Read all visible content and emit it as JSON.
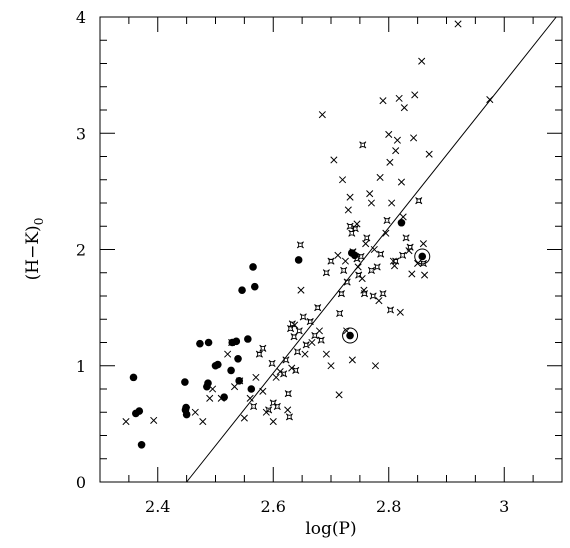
{
  "chart_data": {
    "type": "scatter",
    "title": "",
    "xlabel": "log(P)",
    "ylabel": "(H−K)",
    "ylabel_subscript": "0",
    "xlim": [
      2.3,
      3.1
    ],
    "ylim": [
      0,
      4
    ],
    "xticks": [
      2.4,
      2.6,
      2.8,
      3.0
    ],
    "xtick_labels": [
      "2.4",
      "2.6",
      "2.8",
      "3"
    ],
    "yticks": [
      0,
      1,
      2,
      3,
      4
    ],
    "ytick_labels": [
      "0",
      "1",
      "2",
      "3",
      "4"
    ],
    "grid": false,
    "fit_line": {
      "x": [
        2.45,
        3.09
      ],
      "y": [
        0.0,
        4.0
      ]
    },
    "series": [
      {
        "marker": "filled-circle",
        "points": [
          [
            2.358,
            0.9
          ],
          [
            2.362,
            0.59
          ],
          [
            2.368,
            0.61
          ],
          [
            2.372,
            0.32
          ],
          [
            2.447,
            0.86
          ],
          [
            2.448,
            0.62
          ],
          [
            2.449,
            0.64
          ],
          [
            2.45,
            0.58
          ],
          [
            2.473,
            1.19
          ],
          [
            2.485,
            0.82
          ],
          [
            2.487,
            0.85
          ],
          [
            2.488,
            1.2
          ],
          [
            2.5,
            1.0
          ],
          [
            2.504,
            1.01
          ],
          [
            2.515,
            0.73
          ],
          [
            2.527,
            0.96
          ],
          [
            2.529,
            1.2
          ],
          [
            2.536,
            1.21
          ],
          [
            2.539,
            1.06
          ],
          [
            2.541,
            0.87
          ],
          [
            2.546,
            1.65
          ],
          [
            2.556,
            1.23
          ],
          [
            2.562,
            0.8
          ],
          [
            2.565,
            1.85
          ],
          [
            2.568,
            1.68
          ],
          [
            2.644,
            1.91
          ],
          [
            2.736,
            1.97
          ],
          [
            2.741,
            1.95
          ],
          [
            2.822,
            2.23
          ]
        ]
      },
      {
        "marker": "circled-dot",
        "points": [
          [
            2.733,
            1.26
          ],
          [
            2.858,
            1.94
          ]
        ]
      },
      {
        "marker": "cross",
        "points": [
          [
            2.345,
            0.52
          ],
          [
            2.393,
            0.53
          ],
          [
            2.45,
            0.62
          ],
          [
            2.465,
            0.6
          ],
          [
            2.478,
            0.52
          ],
          [
            2.49,
            0.72
          ],
          [
            2.495,
            0.8
          ],
          [
            2.51,
            0.72
          ],
          [
            2.521,
            1.1
          ],
          [
            2.533,
            0.82
          ],
          [
            2.55,
            0.55
          ],
          [
            2.56,
            0.72
          ],
          [
            2.57,
            0.9
          ],
          [
            2.582,
            0.78
          ],
          [
            2.588,
            0.6
          ],
          [
            2.6,
            0.52
          ],
          [
            2.605,
            0.9
          ],
          [
            2.612,
            0.95
          ],
          [
            2.625,
            0.62
          ],
          [
            2.632,
            0.98
          ],
          [
            2.637,
            1.35
          ],
          [
            2.648,
            1.65
          ],
          [
            2.655,
            1.1
          ],
          [
            2.667,
            1.2
          ],
          [
            2.68,
            1.3
          ],
          [
            2.685,
            3.16
          ],
          [
            2.692,
            1.1
          ],
          [
            2.7,
            1.0
          ],
          [
            2.705,
            2.77
          ],
          [
            2.712,
            1.95
          ],
          [
            2.714,
            0.75
          ],
          [
            2.72,
            2.6
          ],
          [
            2.725,
            1.9
          ],
          [
            2.727,
            1.3
          ],
          [
            2.73,
            2.34
          ],
          [
            2.733,
            2.45
          ],
          [
            2.737,
            1.05
          ],
          [
            2.745,
            2.22
          ],
          [
            2.747,
            1.85
          ],
          [
            2.754,
            1.75
          ],
          [
            2.757,
            1.65
          ],
          [
            2.76,
            2.05
          ],
          [
            2.767,
            2.48
          ],
          [
            2.77,
            2.4
          ],
          [
            2.775,
            2.0
          ],
          [
            2.777,
            1.0
          ],
          [
            2.783,
            1.56
          ],
          [
            2.785,
            2.62
          ],
          [
            2.79,
            3.28
          ],
          [
            2.795,
            2.14
          ],
          [
            2.8,
            2.99
          ],
          [
            2.802,
            2.75
          ],
          [
            2.805,
            2.4
          ],
          [
            2.808,
            1.9
          ],
          [
            2.81,
            1.86
          ],
          [
            2.812,
            2.85
          ],
          [
            2.815,
            2.94
          ],
          [
            2.818,
            3.3
          ],
          [
            2.82,
            1.46
          ],
          [
            2.822,
            2.58
          ],
          [
            2.825,
            2.28
          ],
          [
            2.827,
            3.22
          ],
          [
            2.835,
            1.99
          ],
          [
            2.84,
            1.79
          ],
          [
            2.843,
            2.96
          ],
          [
            2.845,
            3.33
          ],
          [
            2.85,
            1.88
          ],
          [
            2.857,
            3.62
          ],
          [
            2.86,
            2.05
          ],
          [
            2.862,
            1.78
          ],
          [
            2.87,
            2.82
          ],
          [
            2.92,
            3.94
          ],
          [
            2.975,
            3.29
          ]
        ]
      },
      {
        "marker": "star",
        "points": [
          [
            2.528,
            1.2
          ],
          [
            2.542,
            0.87
          ],
          [
            2.566,
            0.65
          ],
          [
            2.576,
            1.1
          ],
          [
            2.582,
            1.15
          ],
          [
            2.592,
            0.62
          ],
          [
            2.598,
            1.02
          ],
          [
            2.6,
            0.68
          ],
          [
            2.607,
            0.65
          ],
          [
            2.618,
            0.93
          ],
          [
            2.622,
            1.05
          ],
          [
            2.626,
            0.76
          ],
          [
            2.628,
            0.56
          ],
          [
            2.63,
            1.32
          ],
          [
            2.633,
            1.36
          ],
          [
            2.636,
            1.25
          ],
          [
            2.639,
            0.96
          ],
          [
            2.642,
            1.12
          ],
          [
            2.645,
            1.3
          ],
          [
            2.647,
            2.04
          ],
          [
            2.652,
            1.42
          ],
          [
            2.657,
            1.18
          ],
          [
            2.664,
            1.38
          ],
          [
            2.672,
            1.26
          ],
          [
            2.677,
            1.5
          ],
          [
            2.683,
            1.22
          ],
          [
            2.692,
            1.8
          ],
          [
            2.7,
            1.9
          ],
          [
            2.715,
            1.45
          ],
          [
            2.718,
            1.62
          ],
          [
            2.722,
            1.82
          ],
          [
            2.728,
            1.72
          ],
          [
            2.733,
            2.2
          ],
          [
            2.736,
            2.14
          ],
          [
            2.738,
            1.98
          ],
          [
            2.742,
            2.18
          ],
          [
            2.745,
            1.92
          ],
          [
            2.748,
            1.78
          ],
          [
            2.752,
            1.94
          ],
          [
            2.755,
            2.9
          ],
          [
            2.758,
            1.62
          ],
          [
            2.762,
            2.1
          ],
          [
            2.77,
            1.82
          ],
          [
            2.773,
            1.6
          ],
          [
            2.78,
            1.85
          ],
          [
            2.786,
            1.96
          ],
          [
            2.79,
            1.62
          ],
          [
            2.797,
            2.25
          ],
          [
            2.803,
            1.48
          ],
          [
            2.812,
            1.9
          ],
          [
            2.824,
            1.95
          ],
          [
            2.83,
            2.1
          ],
          [
            2.837,
            2.02
          ],
          [
            2.852,
            2.42
          ],
          [
            2.86,
            1.88
          ]
        ]
      }
    ]
  }
}
